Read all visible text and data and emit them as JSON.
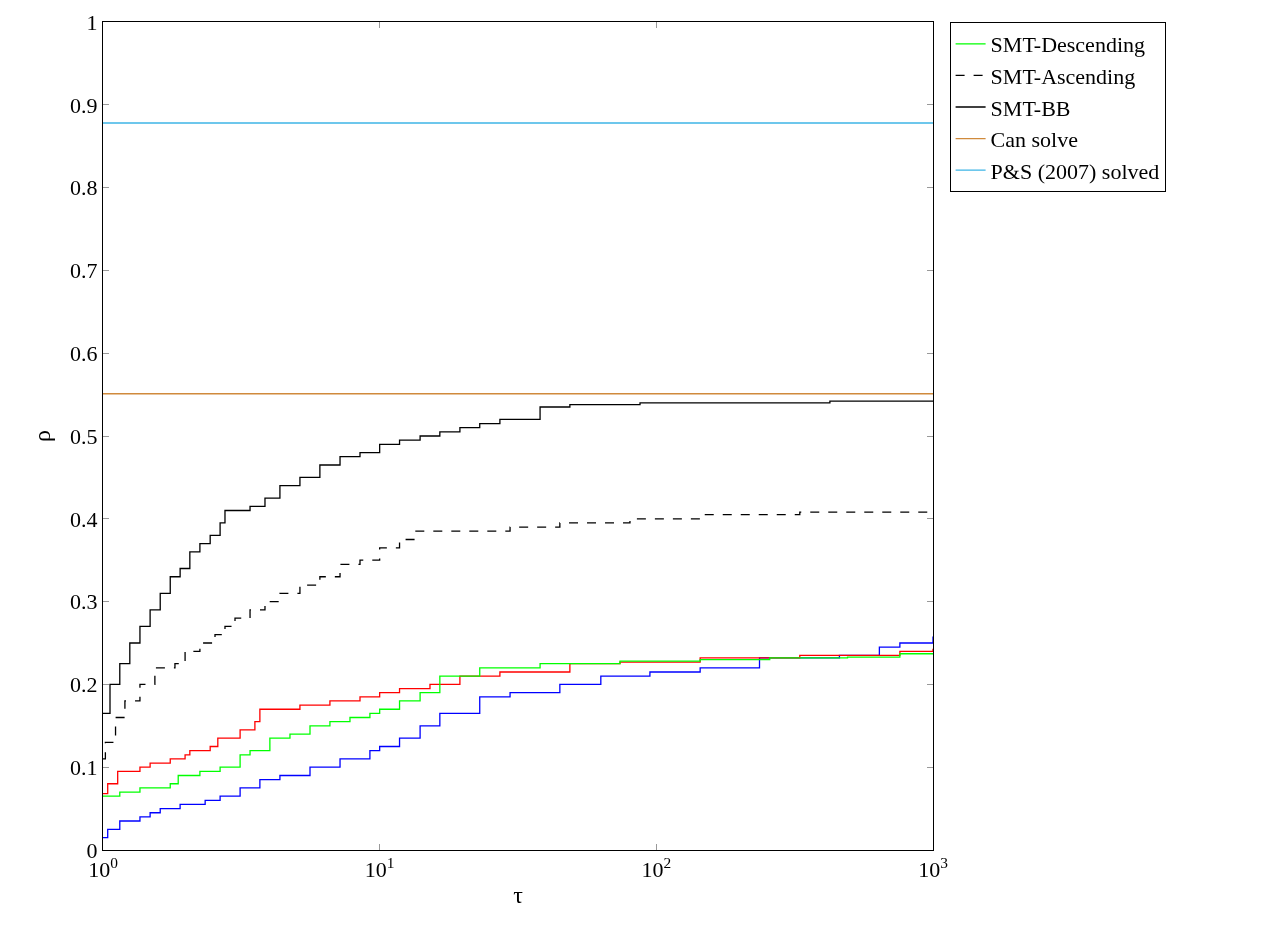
{
  "chart_data": {
    "type": "step",
    "xlabel": "τ",
    "ylabel": "ρ",
    "log": "x",
    "grid": false,
    "legend": "top right",
    "line_style": "solid",
    "marker": "none",
    "xlim": [
      1,
      1000
    ],
    "xticks": [
      {
        "value": 1,
        "label": "10$^{0}$"
      },
      {
        "value": 10,
        "label": "10$^{1}$"
      },
      {
        "value": 100,
        "label": "10$^{2}$"
      },
      {
        "value": 1000,
        "label": "10$^{3}$"
      }
    ],
    "ylim": [
      0,
      1
    ],
    "yticks": [
      0,
      0.1,
      0.2,
      0.3,
      0.4,
      0.5,
      0.6,
      0.7,
      0.8,
      0.9,
      1
    ],
    "series": [
      {
        "color": "#0000ff",
        "x": [
          1,
          1.04,
          1.15,
          1.36,
          1.48,
          1.61,
          1.9,
          2.34,
          2.65,
          3.13,
          3.69,
          4.36,
          5.6,
          7.19,
          9.22,
          10,
          11.8,
          14,
          16.5,
          23,
          29.6,
          44.8,
          63,
          94.8,
          144,
          236,
          459,
          640,
          759,
          1000
        ],
        "values": [
          0.015,
          0.025,
          0.035,
          0.04,
          0.045,
          0.05,
          0.055,
          0.06,
          0.065,
          0.075,
          0.085,
          0.09,
          0.1,
          0.11,
          0.12,
          0.125,
          0.135,
          0.15,
          0.165,
          0.185,
          0.19,
          0.2,
          0.21,
          0.215,
          0.22,
          0.232,
          0.235,
          0.245,
          0.25,
          0.258
        ]
      },
      {
        "color": "#ff0000",
        "x": [
          1,
          1.04,
          1.13,
          1.36,
          1.48,
          1.75,
          1.98,
          2.06,
          2.44,
          2.6,
          3.13,
          3.54,
          3.69,
          5.15,
          6.61,
          8.49,
          10,
          11.8,
          15.2,
          19.5,
          27.2,
          48.7,
          73.9,
          144,
          330,
          759,
          1000
        ],
        "values": [
          0.068,
          0.08,
          0.095,
          0.1,
          0.105,
          0.11,
          0.115,
          0.12,
          0.125,
          0.135,
          0.145,
          0.155,
          0.17,
          0.175,
          0.18,
          0.185,
          0.19,
          0.195,
          0.2,
          0.21,
          0.215,
          0.225,
          0.227,
          0.232,
          0.235,
          0.24,
          0.243
        ]
      },
      {
        "name": "SMT-Descending",
        "color": "#00ff00",
        "x": [
          1,
          1.15,
          1.36,
          1.75,
          1.87,
          2.24,
          2.65,
          3.13,
          3.4,
          4.01,
          4.74,
          5.6,
          6.61,
          7.81,
          9.22,
          10,
          11.8,
          14,
          16.5,
          23,
          38,
          73.9,
          144,
          257,
          491,
          759,
          1000
        ],
        "values": [
          0.065,
          0.07,
          0.075,
          0.08,
          0.09,
          0.095,
          0.1,
          0.115,
          0.12,
          0.135,
          0.14,
          0.15,
          0.155,
          0.16,
          0.165,
          0.17,
          0.18,
          0.19,
          0.21,
          0.22,
          0.225,
          0.228,
          0.23,
          0.232,
          0.233,
          0.237,
          0.237
        ]
      },
      {
        "name": "SMT-Ascending",
        "color": "#000000",
        "line_style": "dashed",
        "x": [
          1,
          1.02,
          1.11,
          1.2,
          1.36,
          1.54,
          1.82,
          1.98,
          2.24,
          2.54,
          2.76,
          3,
          3.4,
          3.85,
          4.36,
          5.15,
          6.08,
          7.19,
          8.49,
          10,
          11.8,
          13.4,
          21.2,
          29.6,
          44.8,
          80.3,
          144,
          330,
          1000
        ],
        "values": [
          0.11,
          0.13,
          0.16,
          0.18,
          0.2,
          0.22,
          0.225,
          0.24,
          0.25,
          0.26,
          0.27,
          0.28,
          0.29,
          0.3,
          0.31,
          0.32,
          0.33,
          0.345,
          0.35,
          0.365,
          0.375,
          0.385,
          0.385,
          0.39,
          0.395,
          0.4,
          0.405,
          0.408,
          0.408
        ]
      },
      {
        "name": "SMT-BB",
        "color": "#000000",
        "x": [
          1,
          1.06,
          1.15,
          1.25,
          1.36,
          1.48,
          1.61,
          1.75,
          1.9,
          2.06,
          2.24,
          2.44,
          2.65,
          2.76,
          3.4,
          3.85,
          4.36,
          5.15,
          6.08,
          7.19,
          8.49,
          10,
          11.8,
          14,
          16.5,
          19.5,
          23,
          27.2,
          38,
          48.7,
          87.3,
          424,
          1000
        ],
        "values": [
          0.165,
          0.2,
          0.225,
          0.25,
          0.27,
          0.29,
          0.31,
          0.33,
          0.34,
          0.36,
          0.37,
          0.38,
          0.395,
          0.41,
          0.415,
          0.425,
          0.44,
          0.45,
          0.465,
          0.475,
          0.48,
          0.49,
          0.495,
          0.5,
          0.505,
          0.51,
          0.515,
          0.52,
          0.535,
          0.538,
          0.54,
          0.542,
          0.542
        ]
      },
      {
        "name": "Can solve",
        "type": "line",
        "color": "#d08a3c",
        "x": [
          1,
          1000
        ],
        "values": [
          0.551,
          0.551
        ]
      },
      {
        "name": "P&S (2007) solved",
        "type": "line",
        "color": "#3cb4e6",
        "x": [
          1,
          1000
        ],
        "values": [
          0.878,
          0.878
        ]
      }
    ]
  }
}
